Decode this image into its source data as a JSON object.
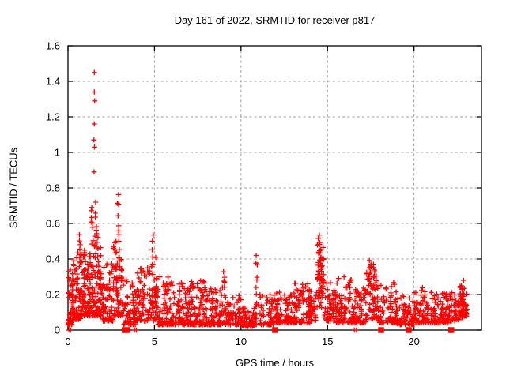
{
  "page": {
    "background": "#ffffff"
  },
  "chart_data": {
    "type": "scatter",
    "title": "Day 161 of 2022, SRMTID for receiver p817",
    "xlabel": "GPS time / hours",
    "ylabel": "SRMTID / TECUs",
    "xlim": [
      0,
      23.9
    ],
    "ylim": [
      0,
      1.6
    ],
    "xticks": [
      0,
      5,
      10,
      15,
      20
    ],
    "xtick_labels": [
      "0",
      "5",
      "10",
      "15",
      "20"
    ],
    "yticks": [
      0,
      0.2,
      0.4,
      0.6,
      0.8,
      1.0,
      1.2,
      1.4,
      1.6
    ],
    "ytick_labels": [
      "0",
      "0.2",
      "0.4",
      "0.6",
      "0.8",
      "1",
      "1.2",
      "1.4",
      "1.6"
    ],
    "grid": {
      "show": true,
      "color": "#9e9e9e",
      "dash": [
        3,
        3.2
      ]
    },
    "axis_color": "#000000",
    "marker": {
      "shape": "plus",
      "color": "#ff0000",
      "size": 6.6,
      "stroke_width": 1.3
    },
    "square_marker": {
      "shape": "filled-square",
      "color": "#ff0000",
      "size": 7.5
    },
    "seed": 161,
    "band_columns": [
      "x_start",
      "x_end",
      "y_min",
      "y_max",
      "count",
      "low_skew"
    ],
    "bands": [
      [
        0.0,
        0.3,
        0.03,
        0.35,
        45,
        1.8
      ],
      [
        0.3,
        0.8,
        0.06,
        0.45,
        70,
        2.0
      ],
      [
        0.8,
        1.3,
        0.08,
        0.45,
        80,
        1.8
      ],
      [
        1.3,
        1.9,
        0.08,
        0.55,
        95,
        1.8
      ],
      [
        1.9,
        2.6,
        0.05,
        0.38,
        75,
        2.0
      ],
      [
        2.6,
        3.2,
        0.08,
        0.5,
        75,
        1.8
      ],
      [
        3.2,
        3.9,
        0.03,
        0.3,
        55,
        1.8
      ],
      [
        3.9,
        4.6,
        0.05,
        0.38,
        60,
        2.0
      ],
      [
        4.6,
        5.1,
        0.05,
        0.42,
        45,
        1.8
      ],
      [
        5.1,
        6.0,
        0.03,
        0.3,
        80,
        2.0
      ],
      [
        6.0,
        7.0,
        0.03,
        0.28,
        85,
        2.0
      ],
      [
        7.0,
        8.0,
        0.03,
        0.28,
        85,
        2.0
      ],
      [
        8.0,
        9.0,
        0.03,
        0.25,
        80,
        2.0
      ],
      [
        9.0,
        10.0,
        0.03,
        0.2,
        70,
        2.0
      ],
      [
        10.0,
        10.8,
        0.02,
        0.14,
        55,
        1.8
      ],
      [
        10.8,
        12.0,
        0.03,
        0.2,
        70,
        2.0
      ],
      [
        12.0,
        13.0,
        0.04,
        0.22,
        80,
        2.0
      ],
      [
        13.0,
        14.0,
        0.04,
        0.27,
        85,
        2.0
      ],
      [
        14.0,
        14.4,
        0.05,
        0.25,
        30,
        1.8
      ],
      [
        14.4,
        14.8,
        0.12,
        0.5,
        40,
        1.2
      ],
      [
        14.8,
        15.5,
        0.05,
        0.27,
        55,
        1.8
      ],
      [
        15.5,
        16.5,
        0.04,
        0.3,
        80,
        2.0
      ],
      [
        16.5,
        17.2,
        0.04,
        0.24,
        55,
        2.0
      ],
      [
        17.2,
        17.9,
        0.06,
        0.34,
        65,
        1.8
      ],
      [
        17.9,
        19.0,
        0.04,
        0.27,
        75,
        2.0
      ],
      [
        19.0,
        20.0,
        0.03,
        0.2,
        65,
        2.0
      ],
      [
        20.0,
        21.0,
        0.04,
        0.24,
        70,
        2.0
      ],
      [
        21.0,
        22.0,
        0.04,
        0.21,
        70,
        2.0
      ],
      [
        22.0,
        22.6,
        0.05,
        0.22,
        45,
        1.8
      ],
      [
        22.6,
        23.1,
        0.07,
        0.26,
        50,
        1.5
      ]
    ],
    "spike_columns": [
      "x_center",
      "y_min",
      "y_max",
      "count",
      "x_jitter"
    ],
    "spikes": [
      [
        0.7,
        0.4,
        0.545,
        5,
        0.06
      ],
      [
        1.38,
        0.55,
        0.7,
        6,
        0.05
      ],
      [
        1.62,
        0.55,
        0.72,
        5,
        0.06
      ],
      [
        2.9,
        0.48,
        0.78,
        8,
        0.05
      ],
      [
        4.9,
        0.3,
        0.575,
        7,
        0.04
      ],
      [
        9.02,
        0.2,
        0.33,
        6,
        0.04
      ],
      [
        10.9,
        0.2,
        0.42,
        7,
        0.04
      ],
      [
        14.5,
        0.28,
        0.535,
        12,
        0.05
      ],
      [
        14.65,
        0.25,
        0.47,
        8,
        0.05
      ],
      [
        17.45,
        0.28,
        0.4,
        9,
        0.07
      ],
      [
        17.7,
        0.28,
        0.38,
        5,
        0.05
      ],
      [
        22.8,
        0.16,
        0.28,
        10,
        0.12
      ]
    ],
    "outlier_points": [
      [
        1.52,
        1.45
      ],
      [
        1.52,
        1.34
      ],
      [
        1.54,
        1.29
      ],
      [
        1.52,
        1.16
      ],
      [
        1.5,
        1.07
      ],
      [
        1.53,
        1.03
      ],
      [
        1.51,
        0.89
      ]
    ],
    "zero_square_x": [
      3.28,
      3.42,
      11.97,
      18.1,
      19.7,
      22.15
    ],
    "zero_plus_x": [
      0.05,
      0.15,
      3.85,
      3.95,
      16.55,
      16.67
    ]
  }
}
